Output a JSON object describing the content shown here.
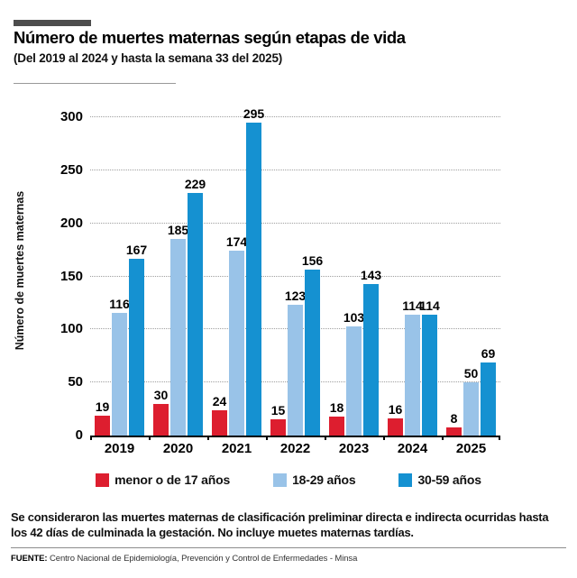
{
  "header": {
    "title": "Número de muertes maternas según etapas de vida",
    "subtitle": "(Del 2019 al 2024 y hasta la semana 33 del 2025)"
  },
  "chart_data": {
    "type": "bar",
    "title": "Número de muertes maternas según etapas de vida",
    "subtitle": "(Del 2019 al 2024 y hasta la semana 33 del 2025)",
    "categories": [
      "2019",
      "2020",
      "2021",
      "2022",
      "2023",
      "2024",
      "2025"
    ],
    "series": [
      {
        "name": "menor o de 17 años",
        "color": "#dd1e2f",
        "values": [
          19,
          30,
          24,
          15,
          18,
          16,
          8
        ]
      },
      {
        "name": "18-29 años",
        "color": "#99c3e8",
        "values": [
          116,
          185,
          174,
          123,
          103,
          114,
          50
        ]
      },
      {
        "name": "30-59 años",
        "color": "#1591d1",
        "values": [
          167,
          229,
          295,
          156,
          143,
          114,
          69
        ]
      }
    ],
    "xlabel": "",
    "ylabel": "Número de muertes maternas",
    "ylim": [
      0,
      300
    ],
    "yticks": [
      0,
      50,
      100,
      150,
      200,
      250,
      300
    ],
    "grid": "horizontal-dotted",
    "legend_position": "bottom",
    "value_labels": true
  },
  "footer": {
    "note": "Se consideraron las muertes maternas de clasificación preliminar directa e indirecta ocurridas hasta los 42 días de culminada la gestación. No incluye muetes maternas tardías.",
    "source_label": "FUENTE:",
    "source_text": "Centro Nacional de Epidemiología, Prevención y Control de Enfermedades - Minsa"
  },
  "colors": {
    "series_red": "#dd1e2f",
    "series_light_blue": "#99c3e8",
    "series_dark_blue": "#1591d1",
    "gridline": "#9f9f9f",
    "axis": "#000000",
    "kicker_bar": "#4d4d4d"
  }
}
